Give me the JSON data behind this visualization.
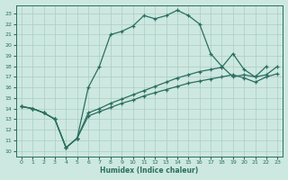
{
  "xlabel": "Humidex (Indice chaleur)",
  "bg_color": "#cde8e0",
  "grid_color": "#aaccc4",
  "line_color": "#2a6e60",
  "xlim": [
    -0.5,
    23.5
  ],
  "ylim": [
    9.5,
    23.8
  ],
  "xticks": [
    0,
    1,
    2,
    3,
    4,
    5,
    6,
    7,
    8,
    9,
    10,
    11,
    12,
    13,
    14,
    15,
    16,
    17,
    18,
    19,
    20,
    21,
    22,
    23
  ],
  "yticks": [
    10,
    11,
    12,
    13,
    14,
    15,
    16,
    17,
    18,
    19,
    20,
    21,
    22,
    23
  ],
  "line1_x": [
    0,
    1,
    2,
    3,
    4,
    5,
    6,
    7,
    8,
    9,
    10,
    11,
    12,
    13,
    14,
    15,
    16,
    17,
    18,
    19,
    20,
    21,
    22
  ],
  "line1_y": [
    14.2,
    14.0,
    13.6,
    13.0,
    10.3,
    11.2,
    16.0,
    18.0,
    21.0,
    21.3,
    21.8,
    22.8,
    22.5,
    22.8,
    23.3,
    22.8,
    22.0,
    19.2,
    18.0,
    17.0,
    17.2,
    17.0,
    18.0
  ],
  "line2_x": [
    0,
    1,
    2,
    3,
    4,
    5,
    6,
    7,
    8,
    9,
    10,
    11,
    12,
    13,
    14,
    15,
    16,
    17,
    18,
    19,
    20,
    21,
    22,
    23
  ],
  "line2_y": [
    14.2,
    14.0,
    13.6,
    13.0,
    10.3,
    11.2,
    13.6,
    14.0,
    14.5,
    14.9,
    15.3,
    15.7,
    16.1,
    16.5,
    16.9,
    17.2,
    17.5,
    17.7,
    17.9,
    19.2,
    17.7,
    17.0,
    17.2,
    18.0
  ],
  "line3_x": [
    0,
    1,
    2,
    3,
    4,
    5,
    6,
    7,
    8,
    9,
    10,
    11,
    12,
    13,
    14,
    15,
    16,
    17,
    18,
    19,
    20,
    21,
    22,
    23
  ],
  "line3_y": [
    14.2,
    14.0,
    13.6,
    13.0,
    10.3,
    11.2,
    13.3,
    13.7,
    14.1,
    14.5,
    14.8,
    15.2,
    15.5,
    15.8,
    16.1,
    16.4,
    16.6,
    16.8,
    17.0,
    17.2,
    16.9,
    16.5,
    17.0,
    17.3
  ]
}
